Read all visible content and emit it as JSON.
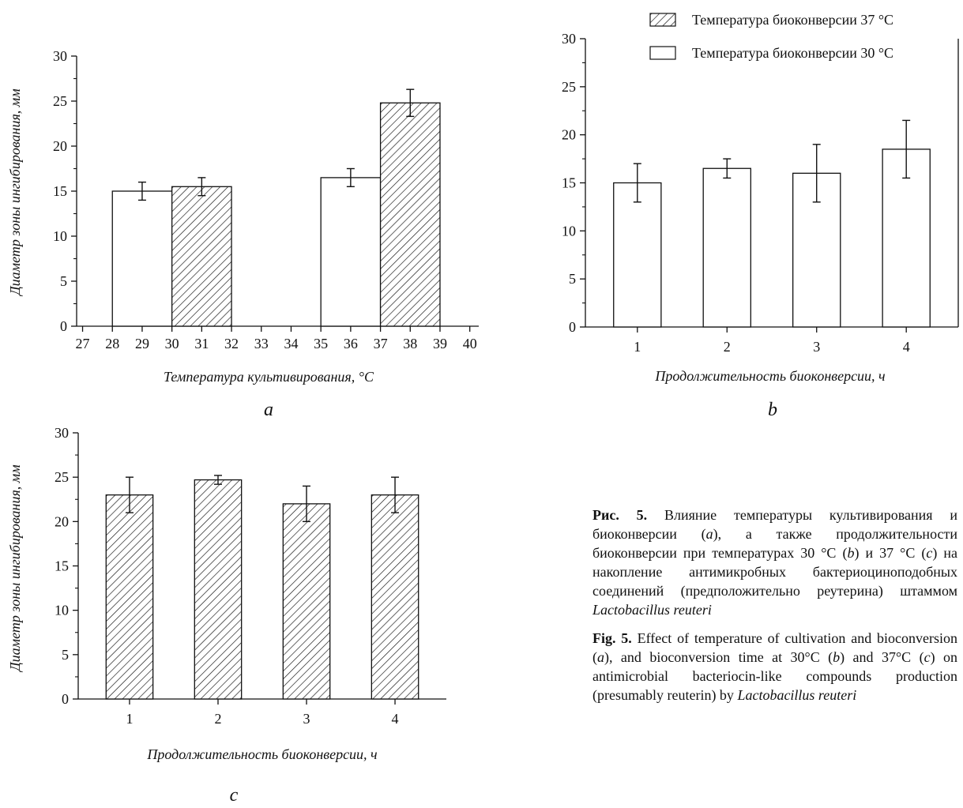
{
  "chart_data": [
    {
      "id": "a",
      "type": "bar",
      "panel_label": "a",
      "xlabel": "Температура культивирования, °C",
      "ylabel": "Диаметр зоны ингибирования, мм",
      "xlim": [
        26.8,
        40.3
      ],
      "ylim": [
        0,
        30
      ],
      "x_ticks": [
        "27",
        "28",
        "29",
        "30",
        "31",
        "32",
        "33",
        "34",
        "35",
        "36",
        "37",
        "38",
        "39",
        "40"
      ],
      "y_ticks": [
        "0",
        "5",
        "10",
        "15",
        "20",
        "25",
        "30"
      ],
      "bars": [
        {
          "x0": 28,
          "x1": 30,
          "value": 15.0,
          "error": 1.0,
          "pattern": "open"
        },
        {
          "x0": 30,
          "x1": 32,
          "value": 15.5,
          "error": 1.0,
          "pattern": "hatched"
        },
        {
          "x0": 35,
          "x1": 37,
          "value": 16.5,
          "error": 1.0,
          "pattern": "open"
        },
        {
          "x0": 37,
          "x1": 39,
          "value": 24.8,
          "error": 1.5,
          "pattern": "hatched"
        }
      ]
    },
    {
      "id": "b",
      "type": "bar",
      "panel_label": "b",
      "xlabel": "Продолжительность биоконверсии, ч",
      "ylabel": "",
      "categories": [
        "1",
        "2",
        "3",
        "4"
      ],
      "values": [
        15.0,
        16.5,
        16.0,
        18.5
      ],
      "errors": [
        2.0,
        1.0,
        3.0,
        3.0
      ],
      "pattern": "open",
      "ylim": [
        0,
        30
      ],
      "y_ticks": [
        "0",
        "5",
        "10",
        "15",
        "20",
        "25",
        "30"
      ],
      "legend": [
        {
          "label": "Температура биоконверсии 37 °C",
          "pattern": "hatched"
        },
        {
          "label": "Температура биоконверсии 30 °C",
          "pattern": "open"
        }
      ],
      "legend_position": "top-right"
    },
    {
      "id": "c",
      "type": "bar",
      "panel_label": "c",
      "xlabel": "Продолжительность биоконверсии, ч",
      "ylabel": "Диаметр зоны ингибирования, мм",
      "categories": [
        "1",
        "2",
        "3",
        "4"
      ],
      "values": [
        23.0,
        24.7,
        22.0,
        23.0
      ],
      "errors": [
        2.0,
        0.5,
        2.0,
        2.0
      ],
      "pattern": "hatched",
      "ylim": [
        0,
        30
      ],
      "y_ticks": [
        "0",
        "5",
        "10",
        "15",
        "20",
        "25",
        "30"
      ]
    }
  ],
  "caption": {
    "ru_label": "Рис. 5.",
    "ru_text_1": "Влияние температуры культивирования и биоконверсии (",
    "ru_a": "a",
    "ru_text_2": "), а также продолжительности биоконверсии при температурах 30 °C (",
    "ru_b": "b",
    "ru_text_3": ") и 37 °C (",
    "ru_c": "c",
    "ru_text_4": ") на накопление антимикробных бактериоциноподобных соединений (предположительно реутерина) штаммом ",
    "ru_species": "Lactobacillus reuteri",
    "en_label": "Fig. 5.",
    "en_text_1": "Effect of temperature of cultivation and bioconversion (",
    "en_a": "a",
    "en_text_2": "), and bioconversion time at 30°C (",
    "en_b": "b",
    "en_text_3": ") and 37°C (",
    "en_c": "c",
    "en_text_4": ") on antimicrobial bacteriocin-like compounds production (presumably reuterin) by ",
    "en_species": "Lactobacillus reuteri"
  }
}
